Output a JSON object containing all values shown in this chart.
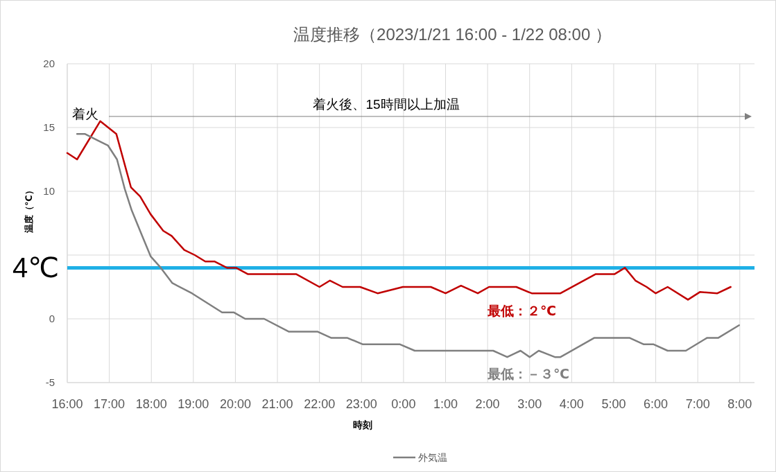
{
  "chart_data": {
    "type": "line",
    "title": "温度推移（2023/1/21 16:00 -  1/22 08:00 ）",
    "xlabel": "時刻",
    "ylabel": "温度（℃）",
    "xlim": [
      "2023-01-21T16:00",
      "2023-01-22T08:21"
    ],
    "ylim": [
      -5,
      20
    ],
    "yticks": [
      -5,
      0,
      {
        "value": 5,
        "label": null
      },
      10,
      15,
      20
    ],
    "xticks": [
      {
        "value": "2023-01-21T16:00",
        "label": "16:00"
      },
      {
        "value": "2023-01-21T17:00",
        "label": "17:00"
      },
      {
        "value": "2023-01-21T18:00",
        "label": "18:00"
      },
      {
        "value": "2023-01-21T19:00",
        "label": "19:00"
      },
      {
        "value": "2023-01-21T20:00",
        "label": "20:00"
      },
      {
        "value": "2023-01-21T21:00",
        "label": "21:00"
      },
      {
        "value": "2023-01-21T22:00",
        "label": "22:00"
      },
      {
        "value": "2023-01-21T23:00",
        "label": "23:00"
      },
      {
        "value": "2023-01-22T00:00",
        "label": "0:00"
      },
      {
        "value": "2023-01-22T01:00",
        "label": "1:00"
      },
      {
        "value": "2023-01-22T02:00",
        "label": "2:00"
      },
      {
        "value": "2023-01-22T03:00",
        "label": "3:00"
      },
      {
        "value": "2023-01-22T04:00",
        "label": "4:00"
      },
      {
        "value": "2023-01-22T05:00",
        "label": "5:00"
      },
      {
        "value": "2023-01-22T06:00",
        "label": "6:00"
      },
      {
        "value": "2023-01-22T07:00",
        "label": "7:00"
      },
      {
        "value": "2023-01-22T08:00",
        "label": "8:00"
      }
    ],
    "grid": true,
    "legend": "bottom",
    "marker": "none",
    "line_style": "solid",
    "series": [
      {
        "color": "#c00000",
        "x": [
          "2023-01-21T16:00",
          "2023-01-21T16:14",
          "2023-01-21T16:47",
          "2023-01-21T17:10",
          "2023-01-21T17:31",
          "2023-01-21T17:44",
          "2023-01-21T17:59",
          "2023-01-21T18:17",
          "2023-01-21T18:29",
          "2023-01-21T18:47",
          "2023-01-21T19:02",
          "2023-01-21T19:17",
          "2023-01-21T19:30",
          "2023-01-21T19:48",
          "2023-01-21T20:01",
          "2023-01-21T20:18",
          "2023-01-21T21:27",
          "2023-01-21T22:00",
          "2023-01-21T22:15",
          "2023-01-21T22:33",
          "2023-01-21T22:58",
          "2023-01-21T23:23",
          "2023-01-21T23:59",
          "2023-01-22T00:39",
          "2023-01-22T01:00",
          "2023-01-22T01:22",
          "2023-01-22T01:46",
          "2023-01-22T02:02",
          "2023-01-22T02:41",
          "2023-01-22T03:03",
          "2023-01-22T03:44",
          "2023-01-22T04:34",
          "2023-01-22T05:01",
          "2023-01-22T05:16",
          "2023-01-22T05:31",
          "2023-01-22T05:47",
          "2023-01-22T06:00",
          "2023-01-22T06:17",
          "2023-01-22T06:46",
          "2023-01-22T07:03",
          "2023-01-22T07:28",
          "2023-01-22T07:47"
        ],
        "values": [
          13.0,
          12.5,
          15.5,
          14.5,
          10.3,
          9.6,
          8.2,
          6.9,
          6.5,
          5.4,
          5.0,
          4.5,
          4.5,
          4.0,
          4.0,
          3.5,
          3.5,
          2.5,
          3.0,
          2.5,
          2.5,
          2.0,
          2.5,
          2.5,
          2.0,
          2.6,
          2.0,
          2.5,
          2.5,
          2.0,
          2.0,
          3.5,
          3.5,
          4.0,
          3.0,
          2.5,
          2.0,
          2.5,
          1.5,
          2.1,
          2.0,
          2.5
        ]
      },
      {
        "name": "外気温",
        "color": "#7f7f7f",
        "x": [
          "2023-01-21T16:14",
          "2023-01-21T16:25",
          "2023-01-21T16:43",
          "2023-01-21T16:58",
          "2023-01-21T17:11",
          "2023-01-21T17:22",
          "2023-01-21T17:32",
          "2023-01-21T17:47",
          "2023-01-21T17:59",
          "2023-01-21T18:12",
          "2023-01-21T18:30",
          "2023-01-21T18:58",
          "2023-01-21T19:41",
          "2023-01-21T19:58",
          "2023-01-21T20:14",
          "2023-01-21T20:41",
          "2023-01-21T21:16",
          "2023-01-21T21:40",
          "2023-01-21T21:57",
          "2023-01-21T22:17",
          "2023-01-21T22:40",
          "2023-01-21T23:02",
          "2023-01-21T23:55",
          "2023-01-22T00:16",
          "2023-01-22T02:08",
          "2023-01-22T02:28",
          "2023-01-22T02:47",
          "2023-01-22T03:00",
          "2023-01-22T03:13",
          "2023-01-22T03:36",
          "2023-01-22T03:44",
          "2023-01-22T04:32",
          "2023-01-22T05:23",
          "2023-01-22T05:43",
          "2023-01-22T05:57",
          "2023-01-22T06:17",
          "2023-01-22T06:43",
          "2023-01-22T07:13",
          "2023-01-22T07:29",
          "2023-01-22T07:59"
        ],
        "values": [
          14.5,
          14.5,
          14.0,
          13.6,
          12.5,
          10.2,
          8.5,
          6.5,
          4.9,
          4.1,
          2.8,
          2.0,
          0.5,
          0.5,
          0.0,
          0.0,
          -1.0,
          -1.0,
          -1.0,
          -1.5,
          -1.5,
          -2.0,
          -2.0,
          -2.5,
          -2.5,
          -3.0,
          -2.5,
          -3.0,
          -2.5,
          -3.0,
          -3.0,
          -1.5,
          -1.5,
          -2.0,
          -2.0,
          -2.5,
          -2.5,
          -1.5,
          -1.5,
          -0.5
        ]
      }
    ],
    "ref_lines": [
      {
        "axis": "y",
        "value": 4,
        "label": "4℃",
        "color": "#1fb0e6"
      }
    ],
    "annotations": [
      "着火",
      "着火後、15時間以上加温",
      "最低：２℃",
      "最低：－３℃"
    ]
  }
}
